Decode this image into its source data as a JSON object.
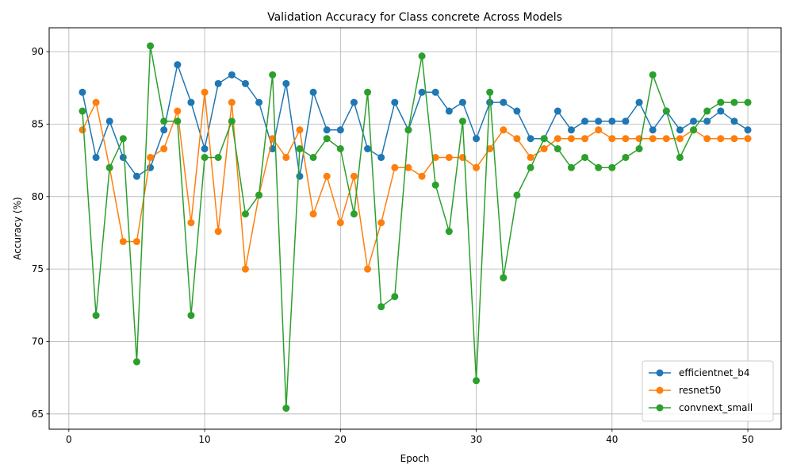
{
  "chart_data": {
    "type": "line",
    "title": "Validation Accuracy for Class concrete Across Models",
    "xlabel": "Epoch",
    "ylabel": "Accuracy (%)",
    "xlim": [
      -1.45,
      52.45
    ],
    "ylim": [
      63.95,
      91.65
    ],
    "xticks": [
      0,
      10,
      20,
      30,
      40,
      50
    ],
    "yticks": [
      65,
      70,
      75,
      80,
      85,
      90
    ],
    "grid": true,
    "legend_position": "lower-right",
    "colors": [
      "#1f77b4",
      "#ff7f0e",
      "#2ca02c"
    ],
    "x": [
      1,
      2,
      3,
      4,
      5,
      6,
      7,
      8,
      9,
      10,
      11,
      12,
      13,
      14,
      15,
      16,
      17,
      18,
      19,
      20,
      21,
      22,
      23,
      24,
      25,
      26,
      27,
      28,
      29,
      30,
      31,
      32,
      33,
      34,
      35,
      36,
      37,
      38,
      39,
      40,
      41,
      42,
      43,
      44,
      45,
      46,
      47,
      48,
      49,
      50
    ],
    "series": [
      {
        "name": "efficientnet_b4",
        "values": [
          87.2,
          82.7,
          85.2,
          82.7,
          81.4,
          82.0,
          84.6,
          89.1,
          86.5,
          83.3,
          87.8,
          88.4,
          87.8,
          86.5,
          83.3,
          87.8,
          81.4,
          87.2,
          84.6,
          84.6,
          86.5,
          83.3,
          82.7,
          86.5,
          84.6,
          87.2,
          87.2,
          85.9,
          86.5,
          84.0,
          86.5,
          86.5,
          85.9,
          84.0,
          84.0,
          85.9,
          84.6,
          85.2,
          85.2,
          85.2,
          85.2,
          86.5,
          84.6,
          85.9,
          84.6,
          85.2,
          85.2,
          85.9,
          85.2,
          84.6
        ]
      },
      {
        "name": "resnet50",
        "values": [
          84.6,
          86.5,
          82.0,
          76.9,
          76.9,
          82.7,
          83.3,
          85.9,
          78.2,
          87.2,
          77.6,
          86.5,
          75.0,
          80.1,
          84.0,
          82.7,
          84.6,
          78.8,
          81.4,
          78.2,
          81.4,
          75.0,
          78.2,
          82.0,
          82.0,
          81.4,
          82.7,
          82.7,
          82.7,
          82.0,
          83.3,
          84.6,
          84.0,
          82.7,
          83.3,
          84.0,
          84.0,
          84.0,
          84.6,
          84.0,
          84.0,
          84.0,
          84.0,
          84.0,
          84.0,
          84.6,
          84.0,
          84.0,
          84.0,
          84.0
        ]
      },
      {
        "name": "convnext_small",
        "values": [
          85.9,
          71.8,
          82.0,
          84.0,
          68.6,
          90.4,
          85.2,
          85.2,
          71.8,
          82.7,
          82.7,
          85.2,
          78.8,
          80.1,
          88.4,
          65.4,
          83.3,
          82.7,
          84.0,
          83.3,
          78.8,
          87.2,
          72.4,
          73.1,
          84.6,
          89.7,
          80.8,
          77.6,
          85.2,
          67.3,
          87.2,
          74.4,
          80.1,
          82.0,
          84.0,
          83.3,
          82.0,
          82.7,
          82.0,
          82.0,
          82.7,
          83.3,
          88.4,
          85.9,
          82.7,
          84.6,
          85.9,
          86.5,
          86.5,
          86.5
        ]
      }
    ]
  }
}
